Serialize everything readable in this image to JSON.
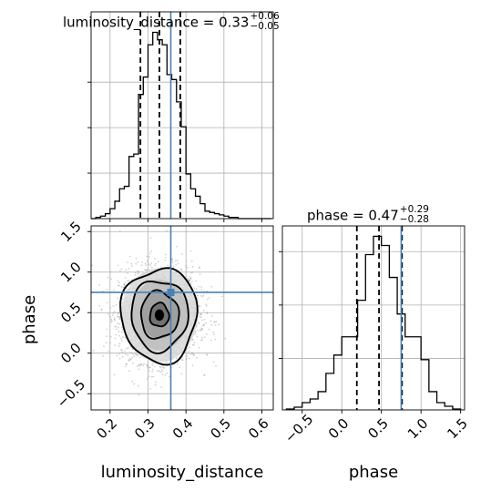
{
  "chart_data": {
    "type": "corner",
    "parameters": [
      "luminosity_distance",
      "phase"
    ],
    "truths": {
      "luminosity_distance": 0.36,
      "phase": 0.75
    },
    "panels": {
      "luminosity_distance": {
        "title": {
          "name": "luminosity_distance",
          "equals": " = ",
          "median": "0.33",
          "plus": "+0.06",
          "minus": "−0.05"
        },
        "xlim": [
          0.15,
          0.63
        ],
        "quantile_lines": [
          0.28,
          0.33,
          0.385
        ],
        "hist_edges": [
          0.15,
          0.1625,
          0.175,
          0.1875,
          0.2,
          0.2125,
          0.225,
          0.2375,
          0.25,
          0.2625,
          0.275,
          0.2875,
          0.3,
          0.3125,
          0.325,
          0.3375,
          0.35,
          0.3625,
          0.375,
          0.3875,
          0.4,
          0.4125,
          0.425,
          0.4375,
          0.45,
          0.4625,
          0.475,
          0.4875,
          0.5,
          0.5125,
          0.525,
          0.5375,
          0.55,
          0.5625,
          0.575,
          0.5875,
          0.6,
          0.6125,
          0.625
        ],
        "hist_counts": [
          0,
          1,
          2,
          4,
          8,
          14,
          24,
          26,
          50,
          52,
          100,
          114,
          140,
          150,
          144,
          140,
          116,
          112,
          94,
          74,
          36,
          24,
          18,
          12,
          6,
          5,
          4,
          3,
          2,
          1,
          1,
          0,
          0,
          0,
          0,
          0,
          0,
          0
        ]
      },
      "phase": {
        "title": {
          "name": "phase",
          "equals": " = ",
          "median": "0.47",
          "plus": "+0.29",
          "minus": "−0.28"
        },
        "xlim": [
          -0.75,
          1.55
        ],
        "xticks": [
          -0.5,
          0.0,
          0.5,
          1.0,
          1.5
        ],
        "xtick_labels": [
          "−0.5",
          "0.0",
          "0.5",
          "1.0",
          "1.5"
        ],
        "quantile_lines": [
          0.19,
          0.47,
          0.76
        ],
        "hist_edges": [
          -0.7,
          -0.6,
          -0.5,
          -0.4,
          -0.3,
          -0.2,
          -0.1,
          0.0,
          0.1,
          0.2,
          0.3,
          0.4,
          0.5,
          0.6,
          0.7,
          0.8,
          0.9,
          1.0,
          1.1,
          1.2,
          1.3,
          1.4,
          1.5
        ],
        "hist_counts": [
          1,
          3,
          8,
          12,
          20,
          40,
          60,
          80,
          80,
          120,
          170,
          190,
          180,
          145,
          105,
          80,
          80,
          55,
          20,
          8,
          4,
          1
        ]
      },
      "joint": {
        "xlim": [
          0.15,
          0.63
        ],
        "ylim": [
          -0.7,
          1.57
        ],
        "xticks": [
          0.2,
          0.3,
          0.4,
          0.5,
          0.6
        ],
        "xtick_labels": [
          "0.2",
          "0.3",
          "0.4",
          "0.5",
          "0.6"
        ],
        "yticks": [
          -0.5,
          0.0,
          0.5,
          1.0,
          1.5
        ],
        "ytick_labels": [
          "−0.5",
          "0.0",
          "0.5",
          "1.0",
          "1.5"
        ],
        "xlabel": "luminosity_distance",
        "ylabel": "phase",
        "center": [
          0.33,
          0.47
        ],
        "spread": [
          0.05,
          0.29
        ],
        "contour_levels_sigma": [
          0.5,
          1.0,
          1.5,
          2.0
        ]
      }
    },
    "truth_color": "#4682b4",
    "line_color": "#000000",
    "grid": true
  }
}
